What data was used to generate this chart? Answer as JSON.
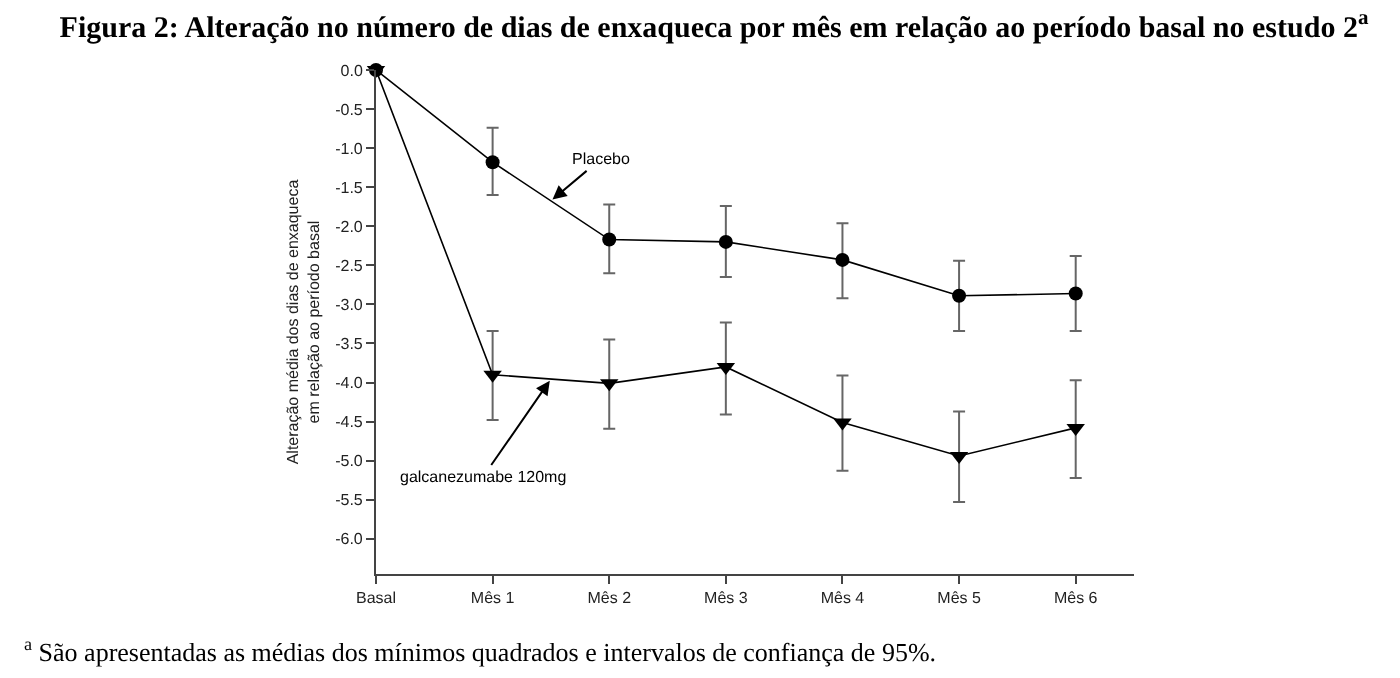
{
  "chart_data": {
    "type": "line",
    "title": "Figura 2: Alteração no número de dias de enxaqueca por mês em relação ao período basal no estudo 2$^{a}$",
    "ylabel": "Alteração média dos dias de enxaqueca\nem relação ao período basal",
    "annotations": [
      "$^{a}$ São apresentadas as médias dos mínimos quadrados e intervalos de confiança de 95%."
    ],
    "categories": [
      "Basal",
      "Mês 1",
      "Mês 2",
      "Mês 3",
      "Mês 4",
      "Mês 5",
      "Mês 6"
    ],
    "series": [
      {
        "name": "Placebo",
        "color": "#000000",
        "marker": "circle",
        "values": [
          0,
          -1.18,
          -2.17,
          -2.2,
          -2.43,
          -2.89,
          -2.86
        ],
        "errors": [
          null,
          [
            -1.6,
            -0.74
          ],
          [
            -2.6,
            -1.72
          ],
          [
            -2.65,
            -1.74
          ],
          [
            -2.92,
            -1.96
          ],
          [
            -3.34,
            -2.44
          ],
          [
            -3.34,
            -2.38
          ]
        ]
      },
      {
        "name": "galcanezumabe 120mg",
        "color": "#000000",
        "marker": "triangle",
        "values": [
          0,
          -3.9,
          -4.01,
          -3.8,
          -4.51,
          -4.94,
          -4.58
        ],
        "errors": [
          null,
          [
            -4.48,
            -3.34
          ],
          [
            -4.59,
            -3.45
          ],
          [
            -4.41,
            -3.23
          ],
          [
            -5.13,
            -3.91
          ],
          [
            -5.53,
            -4.37
          ],
          [
            -5.22,
            -3.97
          ]
        ]
      }
    ],
    "ylim": [
      -6.45,
      0
    ],
    "yticks": [
      {
        "value": 0,
        "label": "0.0"
      },
      -0.5,
      {
        "value": -1,
        "label": "-1.0"
      },
      -1.5,
      {
        "value": -2,
        "label": "-2.0"
      },
      -2.5,
      {
        "value": -3,
        "label": "-3.0"
      },
      -3.5,
      {
        "value": -4,
        "label": "-4.0"
      },
      -4.5,
      {
        "value": -5,
        "label": "-5.0"
      },
      -5.5,
      {
        "value": -6,
        "label": "-6.0"
      }
    ],
    "line_style": "solid"
  }
}
